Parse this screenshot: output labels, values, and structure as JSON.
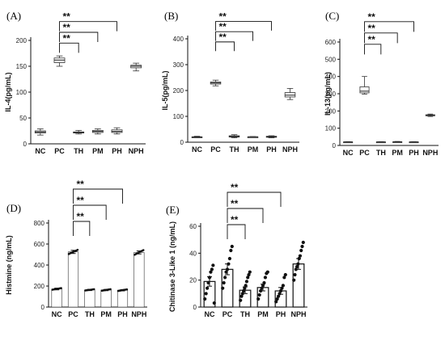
{
  "chart_data": [
    {
      "panel": "(A)",
      "type": "box",
      "ylabel": "IL-4(pg/mL)",
      "categories": [
        "NC",
        "PC",
        "TH",
        "PM",
        "PH",
        "NPH"
      ],
      "ylim": [
        0,
        200
      ],
      "yticks": [
        0,
        50,
        100,
        150,
        200
      ],
      "boxes": [
        {
          "min": 17,
          "q1": 21,
          "median": 23,
          "q3": 25,
          "max": 29
        },
        {
          "min": 150,
          "q1": 157,
          "median": 162,
          "q3": 166,
          "max": 170
        },
        {
          "min": 19,
          "q1": 21,
          "median": 22,
          "q3": 23,
          "max": 26
        },
        {
          "min": 19,
          "q1": 22,
          "median": 24,
          "q3": 26,
          "max": 29
        },
        {
          "min": 19,
          "q1": 22,
          "median": 24,
          "q3": 27,
          "max": 31
        },
        {
          "min": 141,
          "q1": 147,
          "median": 150,
          "q3": 152,
          "max": 156
        }
      ],
      "significance": [
        {
          "from": "PC",
          "to": "TH",
          "label": "**"
        },
        {
          "from": "PC",
          "to": "PM",
          "label": "**"
        },
        {
          "from": "PC",
          "to": "PH",
          "label": "**"
        }
      ]
    },
    {
      "panel": "(B)",
      "type": "box",
      "ylabel": "IL-5(pg/mL)",
      "categories": [
        "NC",
        "PC",
        "TH",
        "PM",
        "PH",
        "NPH"
      ],
      "ylim": [
        0,
        400
      ],
      "yticks": [
        0,
        100,
        200,
        300,
        400
      ],
      "boxes": [
        {
          "min": 18,
          "q1": 19,
          "median": 20,
          "q3": 21,
          "max": 23
        },
        {
          "min": 218,
          "q1": 225,
          "median": 229,
          "q3": 233,
          "max": 240
        },
        {
          "min": 17,
          "q1": 20,
          "median": 22,
          "q3": 25,
          "max": 29
        },
        {
          "min": 19,
          "q1": 20,
          "median": 21,
          "q3": 21,
          "max": 22
        },
        {
          "min": 17,
          "q1": 19,
          "median": 21,
          "q3": 23,
          "max": 25
        },
        {
          "min": 165,
          "q1": 175,
          "median": 182,
          "q3": 192,
          "max": 208
        }
      ],
      "significance": [
        {
          "from": "PC",
          "to": "TH",
          "label": "**"
        },
        {
          "from": "PC",
          "to": "PM",
          "label": "**"
        },
        {
          "from": "PC",
          "to": "PH",
          "label": "**"
        }
      ]
    },
    {
      "panel": "(C)",
      "type": "box",
      "ylabel": "IL-13(pg/mL)",
      "categories": [
        "NC",
        "PC",
        "TH",
        "PM",
        "PH",
        "NPH"
      ],
      "ylim": [
        0,
        600
      ],
      "yticks": [
        0,
        100,
        200,
        300,
        400,
        500,
        600
      ],
      "boxes": [
        {
          "min": 17,
          "q1": 19,
          "median": 20,
          "q3": 21,
          "max": 22
        },
        {
          "min": 298,
          "q1": 305,
          "median": 315,
          "q3": 340,
          "max": 400
        },
        {
          "min": 18,
          "q1": 19,
          "median": 20,
          "q3": 21,
          "max": 22
        },
        {
          "min": 18,
          "q1": 20,
          "median": 21,
          "q3": 22,
          "max": 23
        },
        {
          "min": 18,
          "q1": 19,
          "median": 20,
          "q3": 21,
          "max": 22
        },
        {
          "min": 168,
          "q1": 172,
          "median": 175,
          "q3": 178,
          "max": 182
        }
      ],
      "significance": [
        {
          "from": "PC",
          "to": "TH",
          "label": "**"
        },
        {
          "from": "PC",
          "to": "PM",
          "label": "**"
        },
        {
          "from": "PC",
          "to": "PH",
          "label": "**"
        }
      ]
    },
    {
      "panel": "(D)",
      "type": "bar",
      "ylabel": "Histmine (ng/mL)",
      "categories": [
        "NC",
        "PC",
        "TH",
        "PM",
        "PH",
        "NPH"
      ],
      "ylim": [
        0,
        800
      ],
      "yticks": [
        0,
        200,
        400,
        600,
        800
      ],
      "values": [
        172,
        525,
        163,
        162,
        160,
        520
      ],
      "errors": [
        8,
        15,
        6,
        6,
        6,
        14
      ],
      "points": [
        [
          165,
          168,
          170,
          172,
          174,
          176,
          178,
          180
        ],
        [
          505,
          512,
          518,
          524,
          528,
          532,
          538,
          545
        ],
        [
          158,
          160,
          162,
          163,
          164,
          166,
          168,
          170
        ],
        [
          156,
          158,
          160,
          162,
          164,
          166,
          168,
          170
        ],
        [
          154,
          156,
          158,
          160,
          162,
          164,
          166,
          168
        ],
        [
          498,
          505,
          512,
          518,
          524,
          530,
          536,
          542
        ]
      ],
      "significance": [
        {
          "from": "PC",
          "to": "TH",
          "label": "**"
        },
        {
          "from": "PC",
          "to": "PM",
          "label": "**"
        },
        {
          "from": "PC",
          "to": "PH",
          "label": "**"
        }
      ]
    },
    {
      "panel": "(E)",
      "type": "bar",
      "ylabel": "Chitinase 3-Like 1 (ng/mL)",
      "categories": [
        "NC",
        "PC",
        "TH",
        "PM",
        "PH",
        "NPH"
      ],
      "ylim": [
        0,
        60
      ],
      "yticks": [
        0,
        20,
        40,
        60
      ],
      "values": [
        19,
        28,
        12.5,
        14.5,
        12,
        32
      ],
      "errors": [
        3.5,
        4,
        2.5,
        2.5,
        2.5,
        4
      ],
      "points": [
        [
          6,
          10,
          14,
          18,
          22,
          26,
          28,
          31,
          3
        ],
        [
          14,
          18,
          22,
          26,
          28,
          32,
          36,
          42,
          45
        ],
        [
          5,
          8,
          10,
          12,
          14,
          16,
          19,
          22,
          24,
          26
        ],
        [
          6,
          9,
          12,
          14,
          16,
          18,
          22,
          25,
          26
        ],
        [
          4,
          6,
          8,
          10,
          12,
          14,
          16,
          22,
          24
        ],
        [
          20,
          24,
          28,
          30,
          32,
          36,
          38,
          42,
          45,
          48
        ]
      ],
      "significance": [
        {
          "from": "PC",
          "to": "TH",
          "label": "**"
        },
        {
          "from": "PC",
          "to": "PM",
          "label": "**"
        },
        {
          "from": "PC",
          "to": "PH",
          "label": "**"
        }
      ]
    }
  ]
}
